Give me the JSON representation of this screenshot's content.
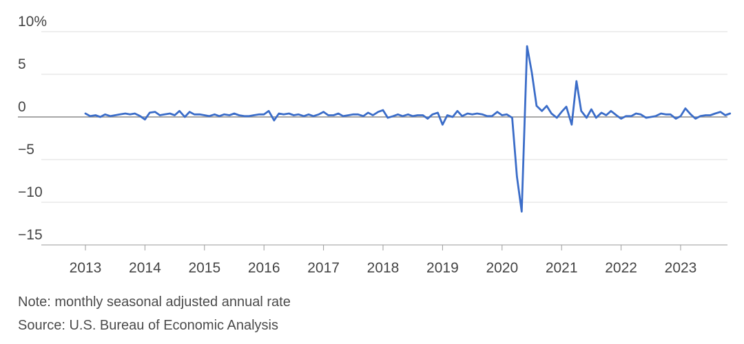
{
  "chart_data": {
    "type": "line",
    "title": "",
    "xlabel": "",
    "ylabel": "",
    "x_tick_labels": [
      "2013",
      "2014",
      "2015",
      "2016",
      "2017",
      "2018",
      "2019",
      "2020",
      "2021",
      "2022",
      "2023"
    ],
    "y_tick_labels": [
      {
        "value": 10,
        "label": "10%"
      },
      {
        "value": 5,
        "label": "5"
      },
      {
        "value": 0,
        "label": "0"
      },
      {
        "value": -5,
        "label": "−5"
      },
      {
        "value": -10,
        "label": "−10"
      },
      {
        "value": -15,
        "label": "−15"
      }
    ],
    "ylim": [
      -15,
      10
    ],
    "xlim": [
      2013.0,
      2023.83
    ],
    "grid": "horizontal",
    "legend": "none",
    "colors": {
      "line": "#3a6cc8",
      "grid": "#dcdcdc",
      "zero_line": "#8a8a8a",
      "text": "#444444"
    },
    "series": [
      {
        "points": [
          [
            2013.0,
            0.4
          ],
          [
            2013.08,
            0.1
          ],
          [
            2013.17,
            0.2
          ],
          [
            2013.25,
            0.0
          ],
          [
            2013.33,
            0.3
          ],
          [
            2013.42,
            0.1
          ],
          [
            2013.5,
            0.2
          ],
          [
            2013.58,
            0.3
          ],
          [
            2013.67,
            0.4
          ],
          [
            2013.75,
            0.3
          ],
          [
            2013.83,
            0.4
          ],
          [
            2013.92,
            0.1
          ],
          [
            2014.0,
            -0.3
          ],
          [
            2014.08,
            0.5
          ],
          [
            2014.17,
            0.6
          ],
          [
            2014.25,
            0.2
          ],
          [
            2014.33,
            0.3
          ],
          [
            2014.42,
            0.4
          ],
          [
            2014.5,
            0.2
          ],
          [
            2014.58,
            0.7
          ],
          [
            2014.67,
            0.0
          ],
          [
            2014.75,
            0.6
          ],
          [
            2014.83,
            0.3
          ],
          [
            2014.92,
            0.3
          ],
          [
            2015.0,
            0.2
          ],
          [
            2015.08,
            0.1
          ],
          [
            2015.17,
            0.3
          ],
          [
            2015.25,
            0.1
          ],
          [
            2015.33,
            0.3
          ],
          [
            2015.42,
            0.2
          ],
          [
            2015.5,
            0.4
          ],
          [
            2015.58,
            0.2
          ],
          [
            2015.67,
            0.1
          ],
          [
            2015.75,
            0.1
          ],
          [
            2015.83,
            0.2
          ],
          [
            2015.92,
            0.3
          ],
          [
            2016.0,
            0.3
          ],
          [
            2016.08,
            0.7
          ],
          [
            2016.17,
            -0.4
          ],
          [
            2016.25,
            0.4
          ],
          [
            2016.33,
            0.3
          ],
          [
            2016.42,
            0.4
          ],
          [
            2016.5,
            0.2
          ],
          [
            2016.58,
            0.3
          ],
          [
            2016.67,
            0.1
          ],
          [
            2016.75,
            0.3
          ],
          [
            2016.83,
            0.1
          ],
          [
            2016.92,
            0.3
          ],
          [
            2017.0,
            0.6
          ],
          [
            2017.08,
            0.2
          ],
          [
            2017.17,
            0.2
          ],
          [
            2017.25,
            0.4
          ],
          [
            2017.33,
            0.1
          ],
          [
            2017.42,
            0.2
          ],
          [
            2017.5,
            0.3
          ],
          [
            2017.58,
            0.3
          ],
          [
            2017.67,
            0.1
          ],
          [
            2017.75,
            0.5
          ],
          [
            2017.83,
            0.2
          ],
          [
            2017.92,
            0.6
          ],
          [
            2018.0,
            0.8
          ],
          [
            2018.08,
            -0.1
          ],
          [
            2018.17,
            0.1
          ],
          [
            2018.25,
            0.3
          ],
          [
            2018.33,
            0.1
          ],
          [
            2018.42,
            0.3
          ],
          [
            2018.5,
            0.1
          ],
          [
            2018.58,
            0.2
          ],
          [
            2018.67,
            0.2
          ],
          [
            2018.75,
            -0.2
          ],
          [
            2018.83,
            0.3
          ],
          [
            2018.92,
            0.5
          ],
          [
            2019.0,
            -0.9
          ],
          [
            2019.08,
            0.2
          ],
          [
            2019.17,
            0.0
          ],
          [
            2019.25,
            0.7
          ],
          [
            2019.33,
            0.1
          ],
          [
            2019.42,
            0.4
          ],
          [
            2019.5,
            0.3
          ],
          [
            2019.58,
            0.4
          ],
          [
            2019.67,
            0.3
          ],
          [
            2019.75,
            0.1
          ],
          [
            2019.83,
            0.1
          ],
          [
            2019.92,
            0.6
          ],
          [
            2020.0,
            0.2
          ],
          [
            2020.08,
            0.3
          ],
          [
            2020.17,
            -0.1
          ],
          [
            2020.25,
            -7.0
          ],
          [
            2020.33,
            -11.1
          ],
          [
            2020.42,
            8.3
          ],
          [
            2020.5,
            5.2
          ],
          [
            2020.58,
            1.3
          ],
          [
            2020.67,
            0.7
          ],
          [
            2020.75,
            1.3
          ],
          [
            2020.83,
            0.4
          ],
          [
            2020.92,
            -0.1
          ],
          [
            2021.0,
            0.6
          ],
          [
            2021.08,
            1.2
          ],
          [
            2021.17,
            -0.9
          ],
          [
            2021.25,
            4.2
          ],
          [
            2021.33,
            0.7
          ],
          [
            2021.42,
            -0.1
          ],
          [
            2021.5,
            0.9
          ],
          [
            2021.58,
            -0.1
          ],
          [
            2021.67,
            0.5
          ],
          [
            2021.75,
            0.2
          ],
          [
            2021.83,
            0.7
          ],
          [
            2021.92,
            0.2
          ],
          [
            2022.0,
            -0.2
          ],
          [
            2022.08,
            0.1
          ],
          [
            2022.17,
            0.1
          ],
          [
            2022.25,
            0.4
          ],
          [
            2022.33,
            0.3
          ],
          [
            2022.42,
            -0.1
          ],
          [
            2022.5,
            0.0
          ],
          [
            2022.58,
            0.1
          ],
          [
            2022.67,
            0.4
          ],
          [
            2022.75,
            0.3
          ],
          [
            2022.83,
            0.3
          ],
          [
            2022.92,
            -0.2
          ],
          [
            2023.0,
            0.1
          ],
          [
            2023.08,
            1.0
          ],
          [
            2023.17,
            0.3
          ],
          [
            2023.25,
            -0.2
          ],
          [
            2023.33,
            0.1
          ],
          [
            2023.42,
            0.2
          ],
          [
            2023.5,
            0.2
          ],
          [
            2023.58,
            0.4
          ],
          [
            2023.67,
            0.6
          ],
          [
            2023.75,
            0.2
          ],
          [
            2023.83,
            0.4
          ]
        ]
      }
    ]
  },
  "footer": {
    "note": "Note: monthly seasonal adjusted annual rate",
    "source": "Source: U.S. Bureau of Economic Analysis"
  }
}
